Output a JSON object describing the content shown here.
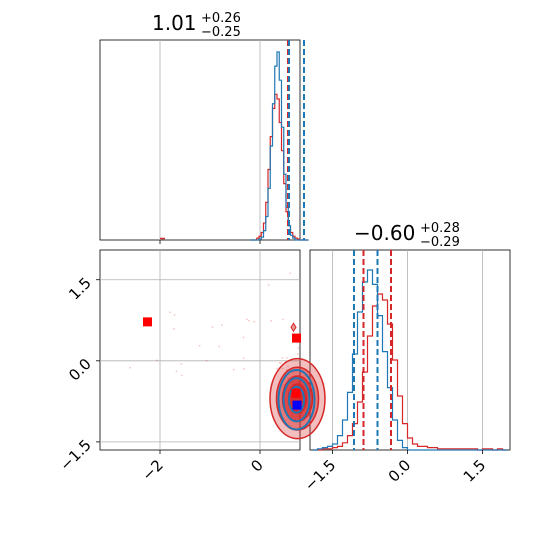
{
  "chart_data": {
    "type": "corner",
    "colors": {
      "blue": "#1f77b4",
      "red": "#d62728",
      "grid": "#b0b0b0",
      "axis": "#000000",
      "fill_red": "#f4a6a6"
    },
    "titles": {
      "p1": {
        "value": "1.01",
        "plus": "+0.26",
        "minus": "−0.25"
      },
      "p2": {
        "value": "−0.60",
        "plus": "+0.28",
        "minus": "−0.29"
      }
    },
    "scatter_axes": {
      "x_range": [
        -3.2,
        0.8
      ],
      "y_range": [
        -1.65,
        2.05
      ],
      "x_ticks": [
        {
          "v": -2,
          "label": "−2"
        },
        {
          "v": 0,
          "label": "0"
        }
      ],
      "y_ticks": [
        {
          "v": 1.5,
          "label": "1.5"
        },
        {
          "v": 0.0,
          "label": "0.0"
        },
        {
          "v": -1.5,
          "label": "−1.5"
        }
      ]
    },
    "p2_hist_axes": {
      "x_range": [
        -1.95,
        2.05
      ],
      "x_ticks": [
        {
          "v": -1.5,
          "label": "−1.5"
        },
        {
          "v": 0.0,
          "label": "0.0"
        },
        {
          "v": 1.5,
          "label": "1.5"
        }
      ]
    },
    "p1_quantiles": {
      "blue": [
        0.56,
        0.86
      ],
      "red": [
        0.58,
        0.9
      ]
    },
    "p2_quantiles": {
      "blue": [
        -1.07,
        -0.6
      ],
      "red": [
        -0.88,
        -0.33
      ]
    },
    "markers": [
      {
        "x": -2.25,
        "y": 0.72,
        "color": "#ff0000",
        "name": "marker-red-outlier"
      },
      {
        "x": 0.73,
        "y": 0.42,
        "color": "#ff0000",
        "name": "marker-red-top"
      },
      {
        "x": 0.72,
        "y": -0.6,
        "color": "#ff0000",
        "name": "marker-red-center"
      },
      {
        "x": 0.74,
        "y": -0.82,
        "color": "#0000ff",
        "name": "marker-blue-center"
      }
    ],
    "contours": {
      "red_center": [
        0.75,
        -0.7
      ],
      "red_radii": [
        [
          0.55,
          0.74
        ],
        [
          0.42,
          0.58
        ],
        [
          0.3,
          0.42
        ],
        [
          0.18,
          0.27
        ]
      ],
      "blue_center": [
        0.73,
        -0.72
      ],
      "blue_radii": [
        [
          0.36,
          0.55
        ],
        [
          0.26,
          0.4
        ],
        [
          0.15,
          0.24
        ]
      ]
    },
    "p1_hist": {
      "x_range": [
        -3.2,
        0.8
      ],
      "bins": [
        0.2,
        0.25,
        0.3,
        0.35,
        0.4,
        0.45,
        0.5,
        0.55,
        0.6,
        0.65,
        0.7,
        0.75,
        0.8,
        0.85,
        0.9,
        0.95,
        1.0,
        1.05,
        1.1,
        1.15,
        1.2,
        1.25,
        1.3,
        1.35,
        1.4,
        1.45,
        1.5
      ],
      "blue": [
        0,
        0,
        0,
        0,
        1,
        3,
        10,
        25,
        55,
        100,
        145,
        185,
        200,
        170,
        120,
        70,
        35,
        15,
        5,
        2,
        0,
        0,
        0,
        0,
        0,
        0
      ],
      "red": [
        0,
        0,
        0,
        2,
        4,
        8,
        18,
        40,
        75,
        110,
        140,
        155,
        150,
        125,
        95,
        60,
        30,
        15,
        8,
        4,
        2,
        1,
        0,
        0,
        0,
        0
      ]
    },
    "p2_hist": {
      "bins": [
        -1.9,
        -1.8,
        -1.7,
        -1.6,
        -1.5,
        -1.4,
        -1.3,
        -1.2,
        -1.1,
        -1.0,
        -0.9,
        -0.8,
        -0.7,
        -0.6,
        -0.5,
        -0.4,
        -0.3,
        -0.2,
        -0.1,
        0.0,
        0.1,
        0.2,
        0.3,
        0.4,
        0.5,
        0.6,
        0.7,
        0.8,
        0.9,
        1.0,
        1.1,
        1.2,
        1.3,
        1.4,
        1.5,
        1.6,
        1.7,
        1.8,
        1.9,
        2.0
      ],
      "blue": [
        0,
        1,
        2,
        3,
        5,
        12,
        25,
        48,
        80,
        115,
        140,
        150,
        138,
        112,
        82,
        52,
        25,
        8,
        2,
        0,
        0,
        0,
        0,
        0,
        0,
        0,
        0,
        0,
        0,
        0,
        0,
        0,
        0,
        0,
        0,
        0,
        0,
        0,
        0
      ],
      "red": [
        0,
        0,
        1,
        1,
        2,
        3,
        6,
        12,
        22,
        40,
        65,
        95,
        120,
        130,
        125,
        105,
        75,
        45,
        22,
        10,
        5,
        3,
        3,
        2,
        2,
        1,
        1,
        1,
        1,
        1,
        1,
        1,
        1,
        0,
        1,
        1,
        0,
        1,
        0
      ]
    },
    "red_points_seed": 7
  }
}
